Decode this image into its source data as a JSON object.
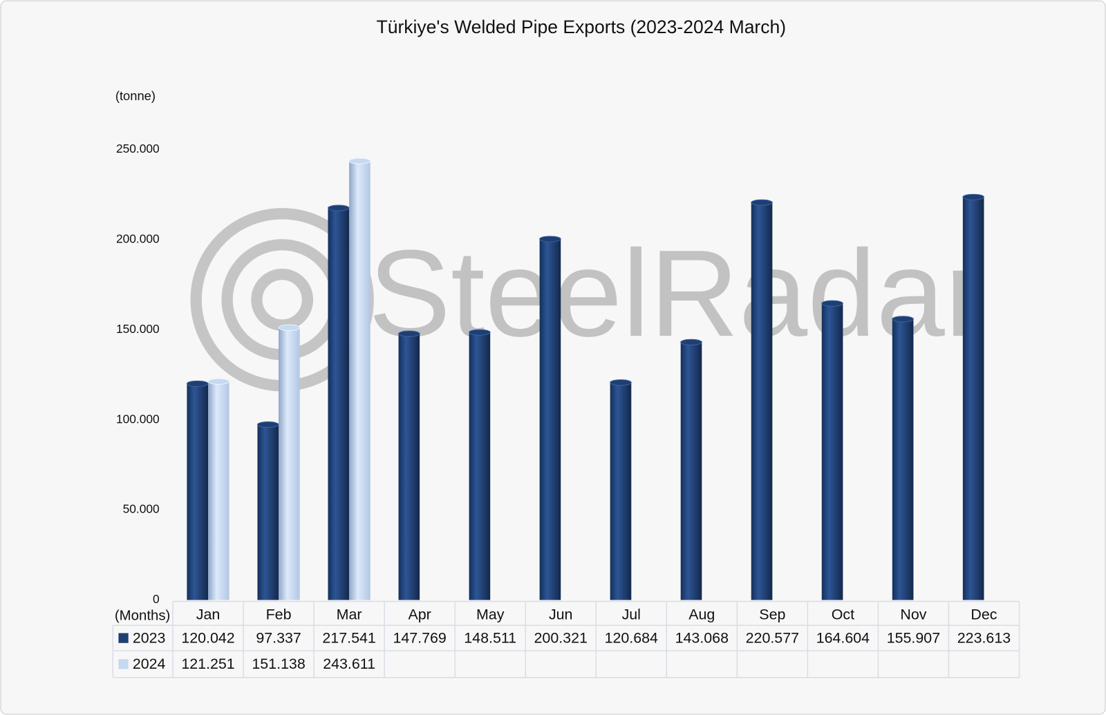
{
  "chart_data": {
    "type": "bar",
    "title": "Türkiye's Welded Pipe Exports (2023-2024 March)",
    "y_label": "(tonne)",
    "x_label": "(Months)",
    "watermark": "SteelRadar",
    "categories": [
      "Jan",
      "Feb",
      "Mar",
      "Apr",
      "May",
      "Jun",
      "Jul",
      "Aug",
      "Sep",
      "Oct",
      "Nov",
      "Dec"
    ],
    "series": [
      {
        "name": "2023",
        "color": "#1f3f73",
        "values": [
          120042,
          97337,
          217541,
          147769,
          148511,
          200321,
          120684,
          143068,
          220577,
          164604,
          155907,
          223613
        ],
        "value_labels": [
          "120.042",
          "97.337",
          "217.541",
          "147.769",
          "148.511",
          "200.321",
          "120.684",
          "143.068",
          "220.577",
          "164.604",
          "155.907",
          "223.613"
        ]
      },
      {
        "name": "2024",
        "color": "#c5d9f1",
        "values": [
          121251,
          151138,
          243611,
          null,
          null,
          null,
          null,
          null,
          null,
          null,
          null,
          null
        ],
        "value_labels": [
          "121.251",
          "151.138",
          "243.611",
          null,
          null,
          null,
          null,
          null,
          null,
          null,
          null,
          null
        ]
      }
    ],
    "ylim": [
      0,
      250000
    ],
    "yticks": [
      0,
      {
        "value": 50000,
        "label": "50.000"
      },
      {
        "value": 100000,
        "label": "100.000"
      },
      {
        "value": 150000,
        "label": "150.000"
      },
      {
        "value": 200000,
        "label": "200.000"
      },
      {
        "value": 250000,
        "label": "250.000"
      }
    ],
    "grid": false,
    "legend": "table"
  }
}
